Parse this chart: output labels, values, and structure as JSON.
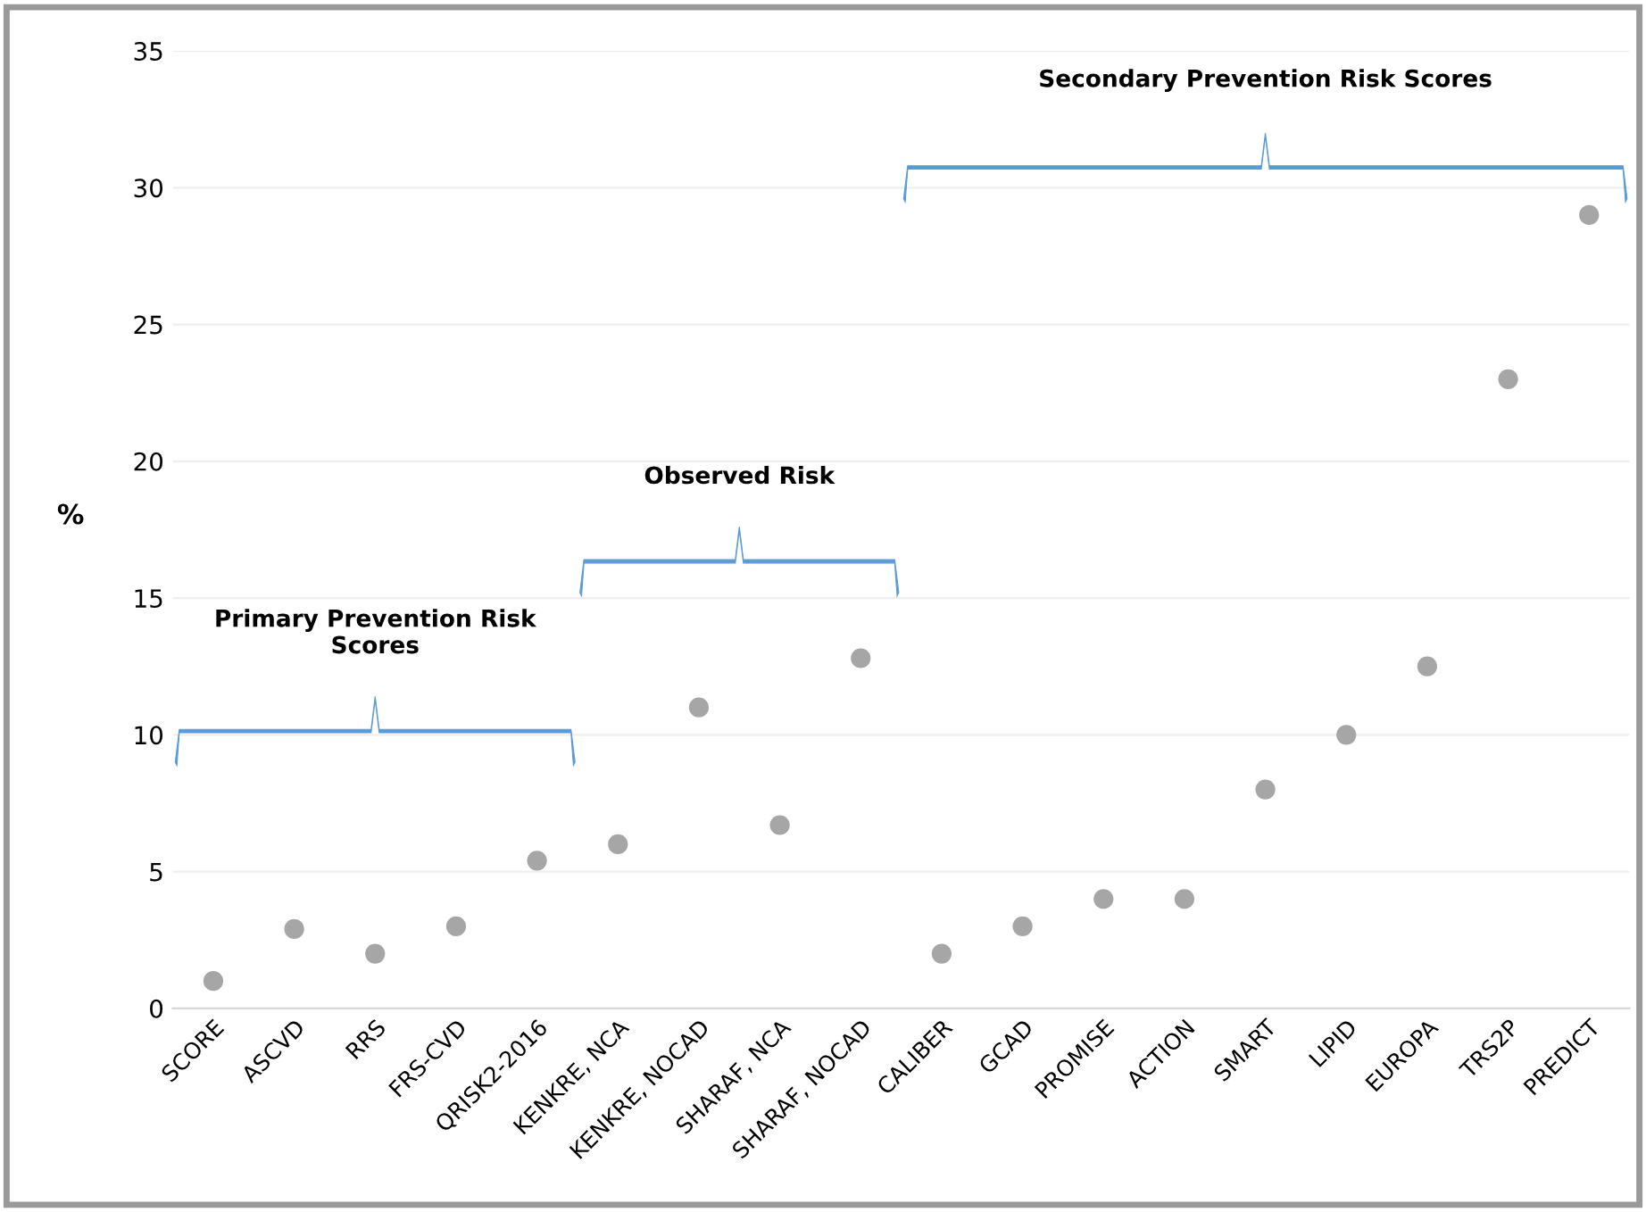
{
  "chart_data": {
    "type": "scatter",
    "ylabel": "%",
    "categories": [
      "SCORE",
      "ASCVD",
      "RRS",
      "FRS-CVD",
      "QRISK2-2016",
      "KENKRE, NCA",
      "KENKRE, NOCAD",
      "SHARAF, NCA",
      "SHARAF, NOCAD",
      "CALIBER",
      "GCAD",
      "PROMISE",
      "ACTION",
      "SMART",
      "LIPID",
      "EUROPA",
      "TRS2P",
      "PREDICT"
    ],
    "values": [
      1,
      2.9,
      2,
      3,
      5.4,
      6,
      11,
      6.7,
      12.8,
      2,
      3,
      4,
      4,
      8,
      10,
      12.5,
      23,
      29
    ],
    "color": "#a6a6a6",
    "marker": "circle",
    "ylim": [
      0,
      35
    ],
    "yticks": [
      0,
      5,
      10,
      15,
      20,
      25,
      30,
      35
    ],
    "grid": "y",
    "annotations": [
      "Primary Prevention Risk\nScores",
      "Observed Risk",
      "Secondary Prevention Risk Scores"
    ]
  }
}
